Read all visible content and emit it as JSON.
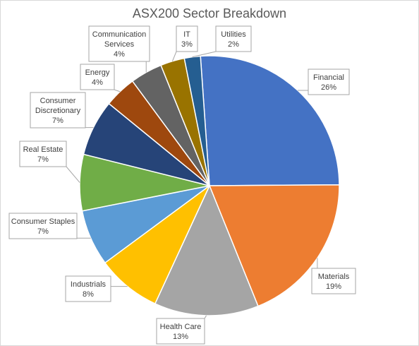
{
  "chart_data": {
    "type": "pie",
    "title": "ASX200 Sector Breakdown",
    "start_angle_deg": -4,
    "direction": "clockwise",
    "data_labels": "category-and-percent-callouts",
    "legend": "none",
    "slices": [
      {
        "label": "Financial",
        "label_lines": [
          "Financial"
        ],
        "value": 26,
        "display": "26%",
        "color": "#4472C4"
      },
      {
        "label": "Materials",
        "label_lines": [
          "Materials"
        ],
        "value": 19,
        "display": "19%",
        "color": "#ED7D31"
      },
      {
        "label": "Health Care",
        "label_lines": [
          "Health Care"
        ],
        "value": 13,
        "display": "13%",
        "color": "#A5A5A5"
      },
      {
        "label": "Industrials",
        "label_lines": [
          "Industrials"
        ],
        "value": 8,
        "display": "8%",
        "color": "#FFC000"
      },
      {
        "label": "Consumer Staples",
        "label_lines": [
          "Consumer Staples"
        ],
        "value": 7,
        "display": "7%",
        "color": "#5B9BD5"
      },
      {
        "label": "Real Estate",
        "label_lines": [
          "Real Estate"
        ],
        "value": 7,
        "display": "7%",
        "color": "#70AD47"
      },
      {
        "label": "Consumer Discretionary",
        "label_lines": [
          "Consumer",
          "Discretionary"
        ],
        "value": 7,
        "display": "7%",
        "color": "#264478"
      },
      {
        "label": "Energy",
        "label_lines": [
          "Energy"
        ],
        "value": 4,
        "display": "4%",
        "color": "#9E480E"
      },
      {
        "label": "Communication Services",
        "label_lines": [
          "Communication",
          "Services"
        ],
        "value": 4,
        "display": "4%",
        "color": "#636363"
      },
      {
        "label": "IT",
        "label_lines": [
          "IT"
        ],
        "value": 3,
        "display": "3%",
        "color": "#997300"
      },
      {
        "label": "Utilities",
        "label_lines": [
          "Utilities"
        ],
        "value": 2,
        "display": "2%",
        "color": "#255E91"
      }
    ]
  }
}
